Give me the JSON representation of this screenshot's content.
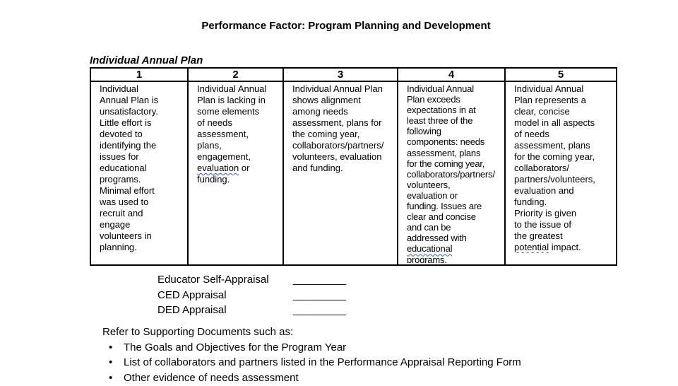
{
  "title": "Performance Factor: Program Planning and Development",
  "rubric": {
    "heading": "Individual Annual Plan",
    "columns": [
      {
        "score": "1",
        "text": "Individual\nAnnual Plan is\nunsatisfactory.\nLittle effort is\ndevoted to\nidentifying the\nissues for\neducational\nprograms.\nMinimal effort\nwas used to\nrecruit and\nengage\nvolunteers in\nplanning.",
        "misspelled_words": []
      },
      {
        "score": "2",
        "text": "Individual Annual\nPlan is lacking in\nsome elements\nof needs\nassessment,\nplans,\nengagement,\nevaluation or\nfunding.",
        "misspelled_words": [
          "evaluation"
        ]
      },
      {
        "score": "3",
        "text": "Individual Annual Plan\nshows alignment\namong needs\nassessment, plans for\nthe coming year,\ncollaborators/partners/\nvolunteers, evaluation\nand funding.",
        "misspelled_words": []
      },
      {
        "score": "4",
        "text": "Individual Annual\nPlan exceeds\nexpectations in at\nleast three of the\nfollowing\ncomponents: needs\nassessment, plans\nfor the coming year,\ncollaborators/partners/\nvolunteers,\nevaluation or\nfunding. Issues are\nclear and concise\nand can be\naddressed with\neducational\nprograms.",
        "misspelled_words": [
          "educational"
        ]
      },
      {
        "score": "5",
        "text": "Individual Annual\nPlan represents a\nclear, concise\nmodel in all aspects\nof needs\nassessment, plans\nfor the coming year,\ncollaborators/\npartners/volunteers,\nevaluation and\nfunding.\nPriority is given\nto the issue of\nthe greatest\npotential impact.",
        "misspelled_words": [
          "potential"
        ]
      }
    ]
  },
  "appraisal": {
    "rows": [
      {
        "label": "Educator Self-Appraisal",
        "blank": "_________"
      },
      {
        "label": "CED Appraisal",
        "blank": "_________"
      },
      {
        "label": "DED Appraisal",
        "blank": "_________"
      }
    ]
  },
  "supporting": {
    "intro": "Refer to Supporting Documents such as:",
    "bullet_glyph": "•",
    "items": [
      "The Goals and Objectives for the Program Year",
      "List of collaborators and partners listed in the Performance Appraisal Reporting Form",
      "Other evidence of needs assessment"
    ]
  },
  "colors": {
    "text": "#000000",
    "border": "#000000",
    "spellcheck_underline": "#3a57c4"
  }
}
